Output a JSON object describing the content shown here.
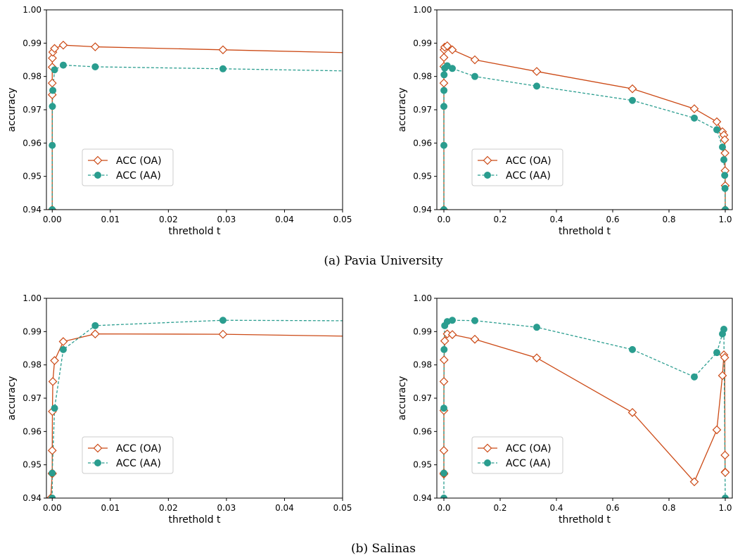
{
  "captions": {
    "a": "(a) Pavia University",
    "b": "(b) Salinas"
  },
  "colors": {
    "oa": "#cc4a16",
    "aa": "#2a9d8f"
  },
  "chart_data": [
    {
      "type": "line",
      "panel": "pavia-zoom",
      "xlabel": "threthold t",
      "ylabel": "accuracy",
      "xlim": [
        -0.001,
        0.05
      ],
      "ylim": [
        0.94,
        1.0
      ],
      "xticks": [
        0.0,
        0.01,
        0.02,
        0.03,
        0.04,
        0.05
      ],
      "xtick_labels": [
        "0.00",
        "0.01",
        "0.02",
        "0.03",
        "0.04",
        "0.05"
      ],
      "yticks": [
        0.94,
        0.95,
        0.96,
        0.97,
        0.98,
        0.99,
        1.0
      ],
      "ytick_labels": [
        "0.94",
        "0.95",
        "0.96",
        "0.97",
        "0.98",
        "0.99",
        "1.00"
      ],
      "legend": "center-left",
      "series": [
        {
          "name": "ACC (OA)",
          "marker": "diamond",
          "dash": "solid",
          "x": [
            0.0,
            0.0,
            0.0,
            0.0,
            3e-05,
            0.0001,
            0.0004,
            0.0019,
            0.0074,
            0.0294,
            0.059
          ],
          "y": [
            0.94,
            0.9745,
            0.978,
            0.9828,
            0.9855,
            0.9873,
            0.9884,
            0.9894,
            0.9889,
            0.988,
            0.9868
          ]
        },
        {
          "name": "ACC (AA)",
          "marker": "circle",
          "dash": "dashed",
          "x": [
            0.0,
            0.0,
            3e-05,
            0.0001,
            0.0004,
            0.0019,
            0.0074,
            0.0294,
            0.059
          ],
          "y": [
            0.94,
            0.9593,
            0.971,
            0.9758,
            0.982,
            0.9834,
            0.9829,
            0.9823,
            0.9814
          ]
        }
      ]
    },
    {
      "type": "line",
      "panel": "pavia-full",
      "xlabel": "threthold t",
      "ylabel": "accuracy",
      "xlim": [
        -0.025,
        1.025
      ],
      "ylim": [
        0.94,
        1.0
      ],
      "xticks": [
        0.0,
        0.2,
        0.4,
        0.6,
        0.8,
        1.0
      ],
      "xtick_labels": [
        "0.0",
        "0.2",
        "0.4",
        "0.6",
        "0.8",
        "1.0"
      ],
      "yticks": [
        0.94,
        0.95,
        0.96,
        0.97,
        0.98,
        0.99,
        1.0
      ],
      "ytick_labels": [
        "0.94",
        "0.95",
        "0.96",
        "0.97",
        "0.98",
        "0.99",
        "1.00"
      ],
      "legend": "lower-left",
      "series": [
        {
          "name": "ACC (OA)",
          "marker": "diamond",
          "dash": "solid",
          "x": [
            0.0,
            0.0,
            0.0,
            0.0002,
            0.0007,
            0.003,
            0.012,
            0.03,
            0.11,
            0.33,
            0.67,
            0.89,
            0.97,
            0.99,
            0.995,
            0.998,
            0.999,
            0.9995,
            0.9999,
            1.0
          ],
          "y": [
            0.94,
            0.978,
            0.983,
            0.9857,
            0.988,
            0.9888,
            0.9892,
            0.988,
            0.985,
            0.9815,
            0.9763,
            0.9703,
            0.9664,
            0.9634,
            0.9624,
            0.961,
            0.957,
            0.9517,
            0.9472,
            0.94
          ]
        },
        {
          "name": "ACC (AA)",
          "marker": "circle",
          "dash": "dashed",
          "x": [
            0.0,
            0.0,
            0.0,
            0.0002,
            0.0007,
            0.003,
            0.012,
            0.03,
            0.11,
            0.33,
            0.67,
            0.89,
            0.97,
            0.99,
            0.995,
            0.998,
            0.999,
            1.0
          ],
          "y": [
            0.94,
            0.9593,
            0.971,
            0.9758,
            0.9805,
            0.9825,
            0.9832,
            0.9824,
            0.98,
            0.9771,
            0.9728,
            0.9675,
            0.964,
            0.9588,
            0.955,
            0.9503,
            0.9464,
            0.94
          ]
        }
      ]
    },
    {
      "type": "line",
      "panel": "salinas-zoom",
      "xlabel": "threthold t",
      "ylabel": "accuracy",
      "xlim": [
        -0.001,
        0.05
      ],
      "ylim": [
        0.94,
        1.0
      ],
      "xticks": [
        0.0,
        0.01,
        0.02,
        0.03,
        0.04,
        0.05
      ],
      "xtick_labels": [
        "0.00",
        "0.01",
        "0.02",
        "0.03",
        "0.04",
        "0.05"
      ],
      "yticks": [
        0.94,
        0.95,
        0.96,
        0.97,
        0.98,
        0.99,
        1.0
      ],
      "ytick_labels": [
        "0.94",
        "0.95",
        "0.96",
        "0.97",
        "0.98",
        "0.99",
        "1.00"
      ],
      "legend": "lower-left",
      "series": [
        {
          "name": "ACC (OA)",
          "marker": "diamond",
          "dash": "solid",
          "x": [
            -0.00025,
            0.0,
            0.0,
            0.0,
            3e-05,
            0.0001,
            0.0004,
            0.0019,
            0.0074,
            0.0294,
            0.059
          ],
          "y": [
            0.94,
            0.9473,
            0.9475,
            0.9543,
            0.966,
            0.975,
            0.9813,
            0.987,
            0.9893,
            0.9892,
            0.9884
          ]
        },
        {
          "name": "ACC (AA)",
          "marker": "circle",
          "dash": "dashed",
          "x": [
            0.0,
            0.0,
            0.0004,
            0.0019,
            0.0074,
            0.0294,
            0.059
          ],
          "y": [
            0.94,
            0.9475,
            0.967,
            0.9846,
            0.9918,
            0.9934,
            0.9932
          ]
        }
      ]
    },
    {
      "type": "line",
      "panel": "salinas-full",
      "xlabel": "threthold t",
      "ylabel": "accuracy",
      "xlim": [
        -0.025,
        1.025
      ],
      "ylim": [
        0.94,
        1.0
      ],
      "xticks": [
        0.0,
        0.2,
        0.4,
        0.6,
        0.8,
        1.0
      ],
      "xtick_labels": [
        "0.0",
        "0.2",
        "0.4",
        "0.6",
        "0.8",
        "1.0"
      ],
      "yticks": [
        0.94,
        0.95,
        0.96,
        0.97,
        0.98,
        0.99,
        1.0
      ],
      "ytick_labels": [
        "0.94",
        "0.95",
        "0.96",
        "0.97",
        "0.98",
        "0.99",
        "1.00"
      ],
      "legend": "lower-left",
      "series": [
        {
          "name": "ACC (OA)",
          "marker": "diamond",
          "dash": "solid",
          "x": [
            0.0,
            0.0,
            0.0,
            0.0,
            0.0001,
            0.0007,
            0.003,
            0.012,
            0.03,
            0.11,
            0.33,
            0.67,
            0.89,
            0.97,
            0.99,
            0.995,
            0.998,
            0.999,
            0.9995,
            1.0
          ],
          "y": [
            0.9472,
            0.9475,
            0.9543,
            0.9663,
            0.975,
            0.9815,
            0.9872,
            0.9893,
            0.9891,
            0.9877,
            0.9821,
            0.9657,
            0.9449,
            0.9605,
            0.9768,
            0.983,
            0.9822,
            0.9529,
            0.9478,
            0.9477
          ]
        },
        {
          "name": "ACC (AA)",
          "marker": "circle",
          "dash": "dashed",
          "x": [
            0.0,
            0.0,
            0.0,
            0.0007,
            0.003,
            0.012,
            0.03,
            0.11,
            0.33,
            0.67,
            0.89,
            0.97,
            0.99,
            0.995,
            1.0
          ],
          "y": [
            0.94,
            0.9475,
            0.967,
            0.9846,
            0.9918,
            0.993,
            0.9934,
            0.9933,
            0.9913,
            0.9846,
            0.9764,
            0.9837,
            0.9893,
            0.9907,
            0.94
          ]
        }
      ]
    }
  ]
}
